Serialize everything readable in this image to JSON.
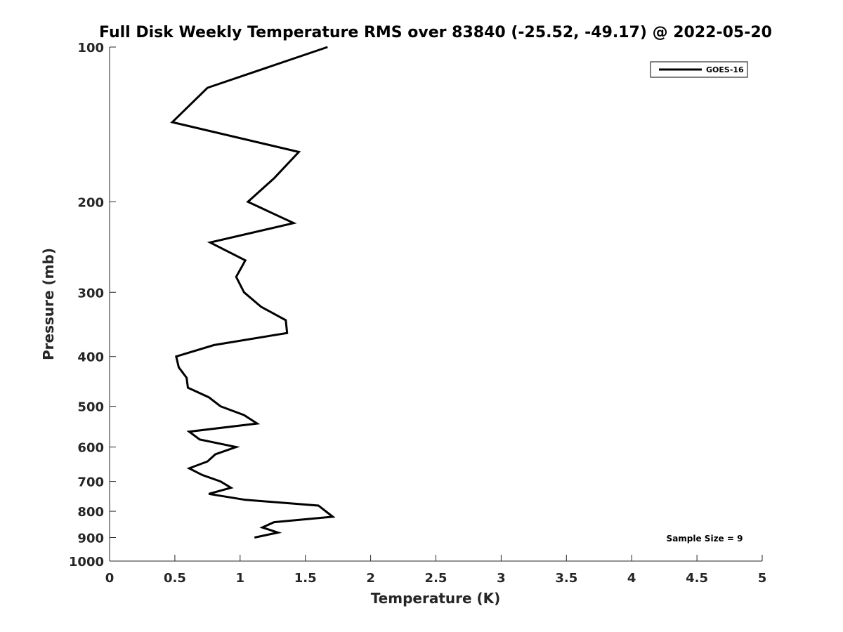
{
  "chart_data": {
    "type": "line",
    "title": "Full Disk Weekly Temperature RMS over 83840 (-25.52, -49.17) @ 2022-05-20",
    "xlabel": "Temperature (K)",
    "ylabel": "Pressure (mb)",
    "xlim": [
      0,
      5
    ],
    "ylim": [
      100,
      1000
    ],
    "yscale": "log",
    "yreversed": true,
    "xticks": [
      "0",
      "0.5",
      "1",
      "1.5",
      "2",
      "2.5",
      "3",
      "3.5",
      "4",
      "4.5",
      "5"
    ],
    "yticks": [
      "100",
      "200",
      "300",
      "400",
      "500",
      "600",
      "700",
      "800",
      "900",
      "1000"
    ],
    "grid": false,
    "legend": {
      "position": "top-right",
      "entries": [
        "GOES-16"
      ]
    },
    "annotation": "Sample Size = 9",
    "series": [
      {
        "name": "GOES-16",
        "color": "#000000",
        "points": [
          [
            1.67,
            100
          ],
          [
            0.75,
            120
          ],
          [
            0.48,
            140
          ],
          [
            1.45,
            160
          ],
          [
            1.26,
            180
          ],
          [
            1.06,
            200
          ],
          [
            1.41,
            220
          ],
          [
            0.77,
            240
          ],
          [
            1.04,
            260
          ],
          [
            0.97,
            280
          ],
          [
            1.03,
            300
          ],
          [
            1.16,
            320
          ],
          [
            1.35,
            340
          ],
          [
            1.36,
            360
          ],
          [
            0.8,
            380
          ],
          [
            0.51,
            400
          ],
          [
            0.53,
            420
          ],
          [
            0.59,
            440
          ],
          [
            0.6,
            460
          ],
          [
            0.76,
            480
          ],
          [
            0.85,
            500
          ],
          [
            1.03,
            520
          ],
          [
            1.13,
            540
          ],
          [
            0.61,
            560
          ],
          [
            0.69,
            580
          ],
          [
            0.97,
            600
          ],
          [
            0.81,
            620
          ],
          [
            0.75,
            640
          ],
          [
            0.61,
            660
          ],
          [
            0.71,
            680
          ],
          [
            0.85,
            700
          ],
          [
            0.93,
            720
          ],
          [
            0.76,
            740
          ],
          [
            1.04,
            760
          ],
          [
            1.6,
            780
          ],
          [
            1.71,
            820
          ],
          [
            1.26,
            840
          ],
          [
            1.17,
            860
          ],
          [
            1.29,
            880
          ],
          [
            1.11,
            900
          ]
        ]
      }
    ]
  }
}
